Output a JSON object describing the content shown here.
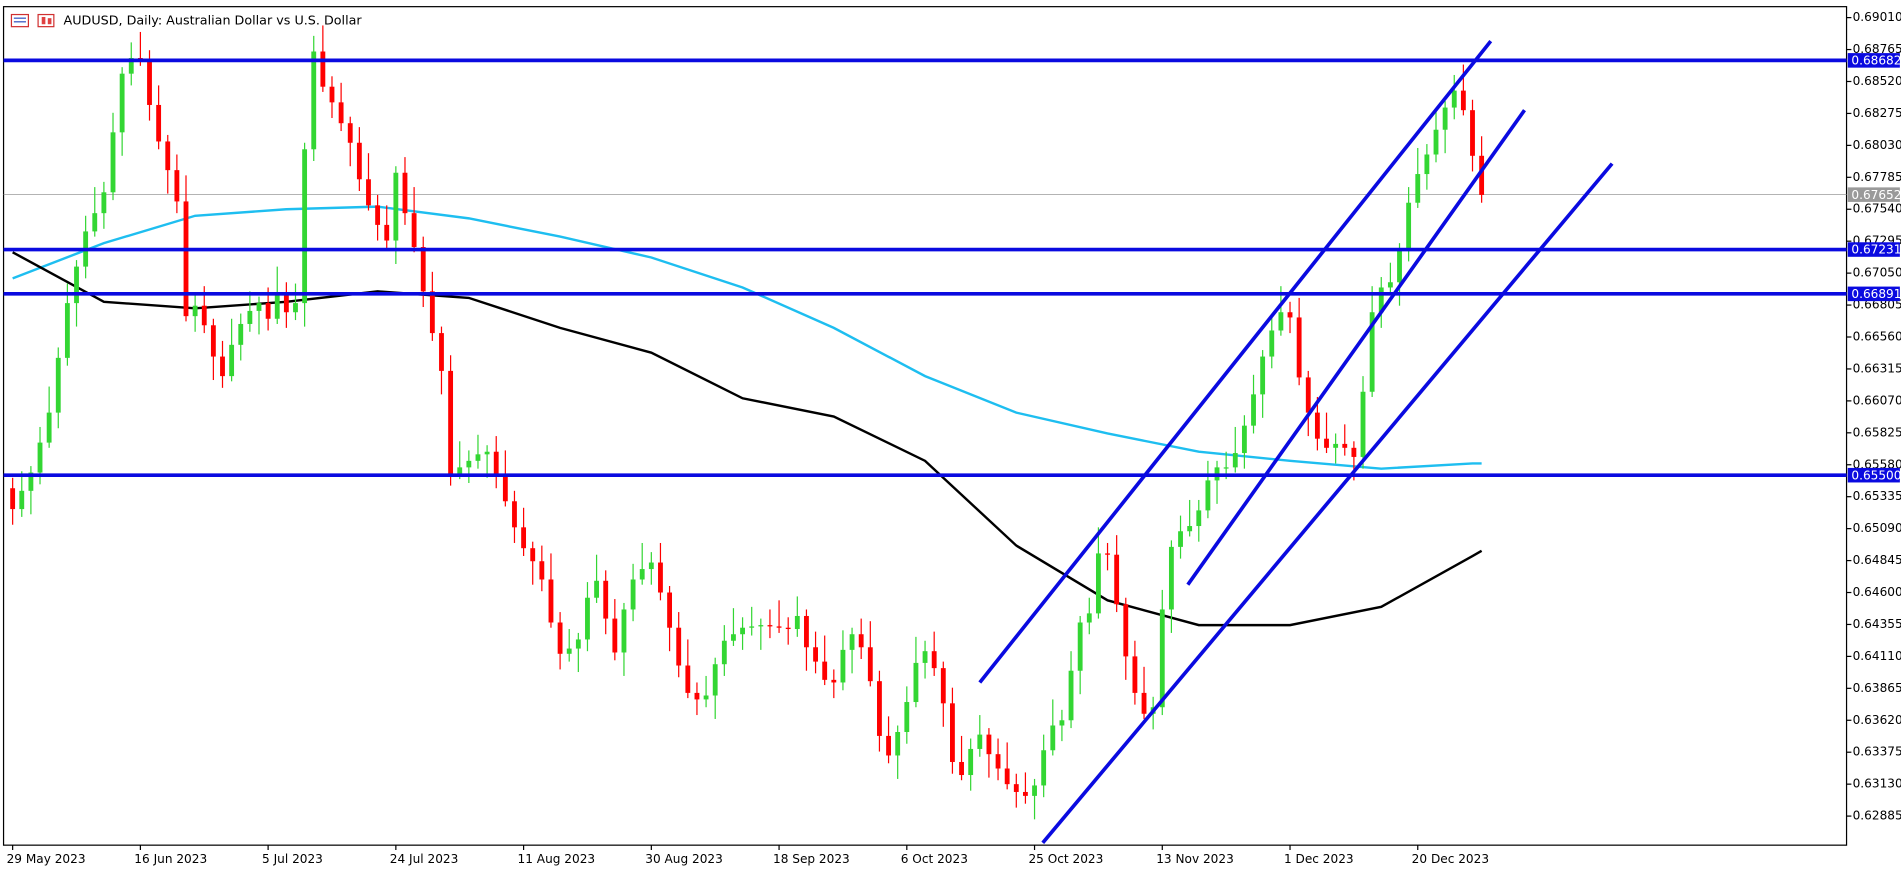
{
  "chart_data": {
    "type": "candlestick",
    "title": "AUDUSD, Daily:  Australian Dollar vs U.S. Dollar",
    "categories": [
      "29 May 2023",
      null,
      null,
      null,
      null,
      null,
      null,
      null,
      null,
      null,
      null,
      null,
      null,
      null,
      "16 Jun 2023",
      null,
      null,
      null,
      null,
      null,
      null,
      null,
      null,
      null,
      null,
      null,
      null,
      null,
      "5 Jul 2023",
      null,
      null,
      null,
      null,
      null,
      null,
      null,
      null,
      null,
      null,
      null,
      null,
      null,
      "24 Jul 2023",
      null,
      null,
      null,
      null,
      null,
      null,
      null,
      null,
      null,
      null,
      null,
      null,
      null,
      "11 Aug 2023",
      null,
      null,
      null,
      null,
      null,
      null,
      null,
      null,
      null,
      null,
      null,
      null,
      null,
      "30 Aug 2023",
      null,
      null,
      null,
      null,
      null,
      null,
      null,
      null,
      null,
      null,
      null,
      null,
      null,
      "18 Sep 2023",
      null,
      null,
      null,
      null,
      null,
      null,
      null,
      null,
      null,
      null,
      null,
      null,
      null,
      "6 Oct 2023",
      null,
      null,
      null,
      null,
      null,
      null,
      null,
      null,
      null,
      null,
      null,
      null,
      null,
      "25 Oct 2023",
      null,
      null,
      null,
      null,
      null,
      null,
      null,
      null,
      null,
      null,
      null,
      null,
      null,
      "13 Nov 2023",
      null,
      null,
      null,
      null,
      null,
      null,
      null,
      null,
      null,
      null,
      null,
      null,
      null,
      "1 Dec 2023",
      null,
      null,
      null,
      null,
      null,
      null,
      null,
      null,
      null,
      null,
      null,
      null,
      null,
      "20 Dec 2023",
      null,
      null,
      null,
      null,
      null,
      null,
      null
    ],
    "open": [
      0.654,
      0.6524,
      0.6538,
      0.6552,
      0.6575,
      0.6598,
      0.664,
      0.6682,
      0.671,
      0.6737,
      0.6751,
      0.6767,
      0.6813,
      0.6858,
      0.687,
      0.6868,
      0.6834,
      0.6806,
      0.6784,
      0.676,
      0.6672,
      0.668,
      0.6665,
      0.6641,
      0.6626,
      0.665,
      0.6666,
      0.6676,
      0.6682,
      0.667,
      0.669,
      0.6675,
      0.6682,
      0.68,
      0.6875,
      0.6848,
      0.6836,
      0.682,
      0.6805,
      0.6777,
      0.6757,
      0.6742,
      0.673,
      0.6782,
      0.6751,
      0.6725,
      0.6691,
      0.6659,
      0.663,
      0.6551,
      0.6556,
      0.6561,
      0.6566,
      0.6568,
      0.6549,
      0.653,
      0.651,
      0.6494,
      0.6484,
      0.647,
      0.6437,
      0.6413,
      0.6417,
      0.6424,
      0.6456,
      0.6469,
      0.644,
      0.6414,
      0.6447,
      0.647,
      0.6478,
      0.6483,
      0.646,
      0.6433,
      0.6404,
      0.6383,
      0.6378,
      0.6381,
      0.6405,
      0.6423,
      0.6428,
      0.6433,
      0.6434,
      0.6435,
      0.6434,
      0.6433,
      0.6432,
      0.6442,
      0.6418,
      0.6407,
      0.6393,
      0.6391,
      0.6416,
      0.6428,
      0.6418,
      0.6392,
      0.635,
      0.6335,
      0.6353,
      0.6376,
      0.6406,
      0.6415,
      0.6402,
      0.6375,
      0.633,
      0.632,
      0.634,
      0.6351,
      0.6336,
      0.6325,
      0.6313,
      0.6307,
      0.6304,
      0.6312,
      0.6339,
      0.6358,
      0.6362,
      0.64,
      0.6437,
      0.6444,
      0.649,
      0.6489,
      0.6451,
      0.6411,
      0.6383,
      0.6367,
      0.6372,
      0.6447,
      0.6495,
      0.6507,
      0.6511,
      0.6523,
      0.6546,
      0.6556,
      0.6556,
      0.6567,
      0.6588,
      0.6612,
      0.6641,
      0.6661,
      0.6675,
      0.6671,
      0.6625,
      0.6598,
      0.6578,
      0.6571,
      0.6574,
      0.6571,
      0.6564,
      0.6614,
      0.6675,
      0.6694,
      0.6698,
      0.6723,
      0.6759,
      0.6781,
      0.6796,
      0.6815,
      0.6832,
      0.6845,
      0.683,
      0.6795
    ],
    "high": [
      0.6548,
      0.6553,
      0.6557,
      0.6587,
      0.6618,
      0.6648,
      0.6697,
      0.6715,
      0.6749,
      0.6771,
      0.6775,
      0.6828,
      0.6863,
      0.6882,
      0.689,
      0.6876,
      0.6849,
      0.6811,
      0.6796,
      0.678,
      0.6688,
      0.6695,
      0.667,
      0.6653,
      0.667,
      0.6674,
      0.6691,
      0.6687,
      0.6694,
      0.671,
      0.6698,
      0.6697,
      0.6805,
      0.6887,
      0.6895,
      0.6856,
      0.6851,
      0.6825,
      0.6817,
      0.6797,
      0.6765,
      0.6757,
      0.6787,
      0.6794,
      0.6771,
      0.6733,
      0.6706,
      0.6664,
      0.6642,
      0.6576,
      0.6569,
      0.6581,
      0.6573,
      0.658,
      0.6569,
      0.6538,
      0.6525,
      0.6499,
      0.6496,
      0.649,
      0.6445,
      0.6432,
      0.6429,
      0.6468,
      0.6489,
      0.6477,
      0.6455,
      0.6452,
      0.6482,
      0.6498,
      0.6491,
      0.6498,
      0.6465,
      0.6445,
      0.6424,
      0.6391,
      0.6396,
      0.641,
      0.6435,
      0.6448,
      0.6441,
      0.6449,
      0.644,
      0.6447,
      0.6454,
      0.6441,
      0.6457,
      0.6447,
      0.643,
      0.6427,
      0.6401,
      0.6431,
      0.6433,
      0.644,
      0.6438,
      0.64,
      0.6365,
      0.6358,
      0.6388,
      0.6426,
      0.6423,
      0.643,
      0.6407,
      0.6387,
      0.635,
      0.6348,
      0.6366,
      0.6356,
      0.6348,
      0.6345,
      0.6321,
      0.6322,
      0.6317,
      0.6351,
      0.6378,
      0.637,
      0.6415,
      0.6442,
      0.6456,
      0.651,
      0.6498,
      0.6504,
      0.6456,
      0.6423,
      0.6403,
      0.638,
      0.6462,
      0.65,
      0.6519,
      0.6531,
      0.6531,
      0.6561,
      0.6561,
      0.6568,
      0.6587,
      0.6596,
      0.6627,
      0.6646,
      0.6673,
      0.6695,
      0.6683,
      0.6686,
      0.663,
      0.661,
      0.6598,
      0.6582,
      0.6589,
      0.6576,
      0.6626,
      0.6695,
      0.6702,
      0.6713,
      0.6728,
      0.6771,
      0.6801,
      0.6804,
      0.683,
      0.6837,
      0.6857,
      0.6865,
      0.6838,
      0.681
    ],
    "low": [
      0.6512,
      0.6518,
      0.652,
      0.6543,
      0.6571,
      0.6586,
      0.6634,
      0.6664,
      0.6701,
      0.6733,
      0.6739,
      0.6761,
      0.6795,
      0.6849,
      0.6864,
      0.6822,
      0.68,
      0.6766,
      0.6751,
      0.6668,
      0.666,
      0.6659,
      0.6623,
      0.6617,
      0.6622,
      0.6638,
      0.666,
      0.6658,
      0.6661,
      0.6666,
      0.6663,
      0.6669,
      0.6664,
      0.6791,
      0.6844,
      0.6824,
      0.6814,
      0.6787,
      0.6768,
      0.6753,
      0.673,
      0.6724,
      0.6712,
      0.6742,
      0.6721,
      0.6679,
      0.6653,
      0.6612,
      0.6542,
      0.6547,
      0.6544,
      0.6555,
      0.6548,
      0.654,
      0.6526,
      0.6498,
      0.6488,
      0.6466,
      0.6461,
      0.6433,
      0.6401,
      0.6407,
      0.6399,
      0.6415,
      0.6452,
      0.6428,
      0.6408,
      0.6396,
      0.6438,
      0.6466,
      0.6466,
      0.6454,
      0.6415,
      0.6395,
      0.6379,
      0.6366,
      0.6372,
      0.6363,
      0.6396,
      0.6419,
      0.6416,
      0.6427,
      0.6416,
      0.6425,
      0.6429,
      0.642,
      0.6426,
      0.64,
      0.6398,
      0.6389,
      0.6379,
      0.6385,
      0.6398,
      0.6409,
      0.6388,
      0.6338,
      0.6329,
      0.6317,
      0.6344,
      0.6372,
      0.6394,
      0.6396,
      0.6357,
      0.6321,
      0.6316,
      0.6308,
      0.6334,
      0.6318,
      0.6316,
      0.6309,
      0.6295,
      0.6298,
      0.6286,
      0.6303,
      0.6335,
      0.6346,
      0.6356,
      0.6382,
      0.6428,
      0.644,
      0.6477,
      0.6445,
      0.6393,
      0.6374,
      0.6363,
      0.6355,
      0.6366,
      0.6429,
      0.6486,
      0.6503,
      0.6499,
      0.6517,
      0.6528,
      0.6547,
      0.6552,
      0.6555,
      0.6582,
      0.6594,
      0.6632,
      0.6657,
      0.6659,
      0.6619,
      0.658,
      0.6569,
      0.6567,
      0.6559,
      0.6565,
      0.6546,
      0.6555,
      0.661,
      0.6663,
      0.6688,
      0.668,
      0.6714,
      0.6755,
      0.6769,
      0.679,
      0.6797,
      0.6823,
      0.6826,
      0.6783,
      0.6759
    ],
    "close": [
      0.6524,
      0.6538,
      0.6552,
      0.6575,
      0.6598,
      0.664,
      0.6682,
      0.671,
      0.6737,
      0.6751,
      0.6767,
      0.6813,
      0.6858,
      0.687,
      0.6868,
      0.6834,
      0.6806,
      0.6784,
      0.676,
      0.6672,
      0.668,
      0.6665,
      0.6641,
      0.6626,
      0.665,
      0.6666,
      0.6676,
      0.6682,
      0.667,
      0.669,
      0.6675,
      0.6682,
      0.68,
      0.6875,
      0.6848,
      0.6836,
      0.682,
      0.6805,
      0.6777,
      0.6757,
      0.6742,
      0.673,
      0.6782,
      0.6751,
      0.6725,
      0.6691,
      0.6659,
      0.663,
      0.6551,
      0.6556,
      0.6561,
      0.6566,
      0.6568,
      0.6549,
      0.653,
      0.651,
      0.6494,
      0.6484,
      0.647,
      0.6437,
      0.6413,
      0.6417,
      0.6424,
      0.6456,
      0.6469,
      0.644,
      0.6414,
      0.6447,
      0.647,
      0.6478,
      0.6483,
      0.646,
      0.6433,
      0.6404,
      0.6383,
      0.6378,
      0.6381,
      0.6405,
      0.6423,
      0.6428,
      0.6433,
      0.6434,
      0.6435,
      0.6434,
      0.6433,
      0.6432,
      0.6442,
      0.6418,
      0.6407,
      0.6393,
      0.6391,
      0.6416,
      0.6428,
      0.6418,
      0.6392,
      0.635,
      0.6335,
      0.6353,
      0.6376,
      0.6406,
      0.6415,
      0.6402,
      0.6375,
      0.633,
      0.632,
      0.634,
      0.6351,
      0.6336,
      0.6325,
      0.6313,
      0.6307,
      0.6304,
      0.6312,
      0.6339,
      0.6358,
      0.6362,
      0.64,
      0.6437,
      0.6444,
      0.649,
      0.6489,
      0.6451,
      0.6411,
      0.6383,
      0.6367,
      0.6372,
      0.6447,
      0.6495,
      0.6507,
      0.6511,
      0.6523,
      0.6546,
      0.6556,
      0.6556,
      0.6567,
      0.6588,
      0.6612,
      0.6641,
      0.6661,
      0.6675,
      0.6671,
      0.6625,
      0.6598,
      0.6578,
      0.6571,
      0.6574,
      0.6571,
      0.6564,
      0.6614,
      0.6675,
      0.6694,
      0.6698,
      0.6723,
      0.6759,
      0.6781,
      0.6796,
      0.6815,
      0.6832,
      0.6845,
      0.683,
      0.6795,
      0.6765
    ],
    "up_color": "#33d633",
    "down_color": "#ff0000",
    "ylim": [
      0.62662,
      0.69094
    ],
    "yticks": [
      {
        "value": 0.6901,
        "label": "0.69010"
      },
      0.68765,
      {
        "value": 0.6852,
        "label": "0.68520"
      },
      0.68275,
      {
        "value": 0.6803,
        "label": "0.68030"
      },
      0.67785,
      {
        "value": 0.6754,
        "label": "0.67540"
      },
      0.67295,
      {
        "value": 0.6705,
        "label": "0.67050"
      },
      0.66805,
      {
        "value": 0.6656,
        "label": "0.66560"
      },
      0.66315,
      {
        "value": 0.6607,
        "label": "0.66070"
      },
      0.65825,
      {
        "value": 0.6558,
        "label": "0.65580"
      },
      0.65335,
      {
        "value": 0.6509,
        "label": "0.65090"
      },
      0.64845,
      {
        "value": 0.646,
        "label": "0.64600"
      },
      0.64355,
      {
        "value": 0.6411,
        "label": "0.64110"
      },
      0.63865,
      {
        "value": 0.6362,
        "label": "0.63620"
      },
      0.63375,
      {
        "value": 0.6313,
        "label": "0.63130"
      },
      0.62885
    ],
    "levels": [
      0.68682,
      0.67231,
      0.66891,
      {
        "value": 0.655,
        "label": "0.65500"
      }
    ],
    "level_color": "#0a0ae0",
    "last_price": 0.67652,
    "last_price_color": "#9a9a9a",
    "moving_averages": [
      {
        "color": "#1ebef0",
        "x": [
          0,
          10,
          20,
          30,
          40,
          50,
          60,
          70,
          80,
          90,
          100,
          110,
          120,
          130,
          140,
          150,
          160,
          161
        ],
        "values": [
          0.6701,
          0.6728,
          0.6749,
          0.6754,
          0.6756,
          0.6747,
          0.6733,
          0.6717,
          0.6694,
          0.6663,
          0.6626,
          0.6598,
          0.6582,
          0.6568,
          0.6561,
          0.6555,
          0.6559,
          0.6559
        ]
      },
      {
        "color": "#000000",
        "x": [
          0,
          10,
          20,
          30,
          40,
          50,
          60,
          70,
          80,
          90,
          100,
          110,
          120,
          130,
          140,
          150,
          160,
          161
        ],
        "values": [
          0.6721,
          0.6683,
          0.6678,
          0.6683,
          0.6691,
          0.6686,
          0.6663,
          0.6644,
          0.6609,
          0.6595,
          0.6561,
          0.6496,
          0.6454,
          0.6435,
          0.6435,
          0.6449,
          0.6488,
          0.6492
        ]
      }
    ],
    "trendlines": [
      {
        "x": [
          106.0,
          162.0
        ],
        "values": [
          0.6391,
          0.6883
        ]
      },
      {
        "x": [
          128.8,
          165.7
        ],
        "values": [
          0.6466,
          0.683
        ]
      },
      {
        "x": [
          112.9,
          175.3
        ],
        "values": [
          0.6268,
          0.6789
        ]
      }
    ]
  }
}
